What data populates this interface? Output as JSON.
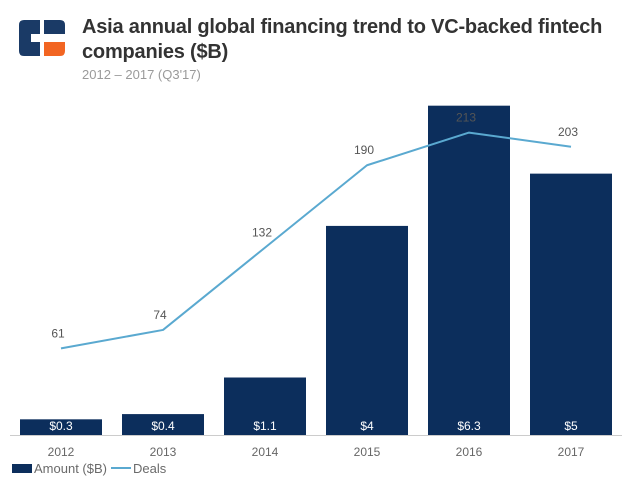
{
  "header": {
    "logo_icon": "cb-insights-logo",
    "title": "Asia annual global financing trend to VC-backed fintech companies ($B)",
    "subtitle": "2012 – 2017 (Q3'17)"
  },
  "colors": {
    "bar": "#0c2e5c",
    "line": "#5aa9d0",
    "logo_dark": "#1a3a66",
    "logo_accent": "#f26522"
  },
  "chart_data": {
    "type": "bar",
    "categories": [
      "2012",
      "2013",
      "2014",
      "2015",
      "2016",
      "2017"
    ],
    "series": [
      {
        "name": "Amount ($B)",
        "type": "bar",
        "values": [
          0.3,
          0.4,
          1.1,
          4,
          6.3,
          5
        ],
        "labels": [
          "$0.3",
          "$0.4",
          "$1.1",
          "$4",
          "$6.3",
          "$5"
        ],
        "axis": "left",
        "ylim": [
          0,
          6.6
        ]
      },
      {
        "name": "Deals",
        "type": "line",
        "values": [
          61,
          74,
          132,
          190,
          213,
          203
        ],
        "labels": [
          "61",
          "74",
          "132",
          "190",
          "213",
          "203"
        ],
        "axis": "right",
        "ylim": [
          0,
          243
        ]
      }
    ],
    "title": "Asia annual global financing trend to VC-backed fintech companies ($B)",
    "subtitle": "2012 – 2017 (Q3'17)",
    "xlabel": "",
    "ylabel": "",
    "grid": false,
    "legend": "bottom-left"
  }
}
